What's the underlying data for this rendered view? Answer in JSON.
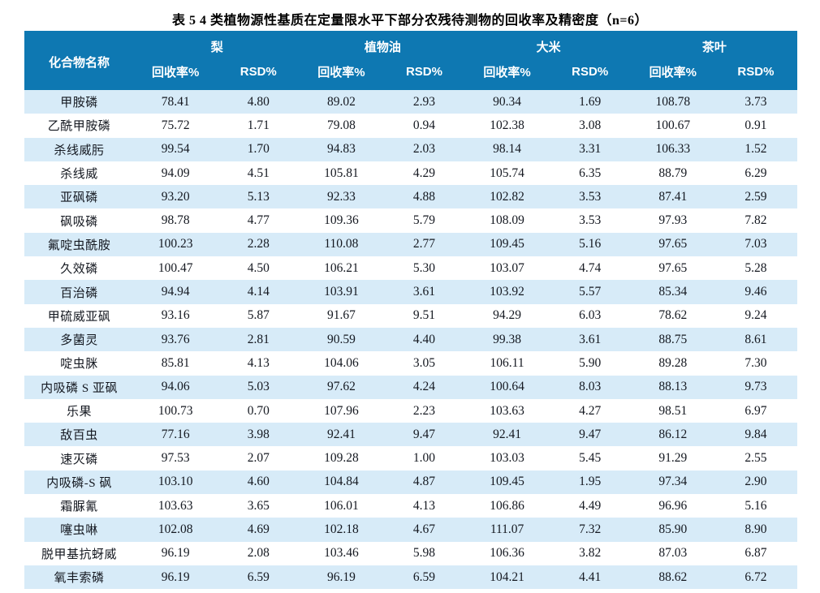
{
  "title": "表 5  4 类植物源性基质在定量限水平下部分农残待测物的回收率及精密度（n=6）",
  "table": {
    "compound_header": "化合物名称",
    "recovery_label": "回收率%",
    "rsd_label": "RSD%",
    "matrices": [
      "梨",
      "植物油",
      "大米",
      "茶叶"
    ],
    "rows": [
      {
        "name": "甲胺磷",
        "values": [
          "78.41",
          "4.80",
          "89.02",
          "2.93",
          "90.34",
          "1.69",
          "108.78",
          "3.73"
        ]
      },
      {
        "name": "乙酰甲胺磷",
        "values": [
          "75.72",
          "1.71",
          "79.08",
          "0.94",
          "102.38",
          "3.08",
          "100.67",
          "0.91"
        ]
      },
      {
        "name": "杀线威肟",
        "values": [
          "99.54",
          "1.70",
          "94.83",
          "2.03",
          "98.14",
          "3.31",
          "106.33",
          "1.52"
        ]
      },
      {
        "name": "杀线威",
        "values": [
          "94.09",
          "4.51",
          "105.81",
          "4.29",
          "105.74",
          "6.35",
          "88.79",
          "6.29"
        ]
      },
      {
        "name": "亚砜磷",
        "values": [
          "93.20",
          "5.13",
          "92.33",
          "4.88",
          "102.82",
          "3.53",
          "87.41",
          "2.59"
        ]
      },
      {
        "name": "砜吸磷",
        "values": [
          "98.78",
          "4.77",
          "109.36",
          "5.79",
          "108.09",
          "3.53",
          "97.93",
          "7.82"
        ]
      },
      {
        "name": "氟啶虫酰胺",
        "values": [
          "100.23",
          "2.28",
          "110.08",
          "2.77",
          "109.45",
          "5.16",
          "97.65",
          "7.03"
        ]
      },
      {
        "name": "久效磷",
        "values": [
          "100.47",
          "4.50",
          "106.21",
          "5.30",
          "103.07",
          "4.74",
          "97.65",
          "5.28"
        ]
      },
      {
        "name": "百治磷",
        "values": [
          "94.94",
          "4.14",
          "103.91",
          "3.61",
          "103.92",
          "5.57",
          "85.34",
          "9.46"
        ]
      },
      {
        "name": "甲硫威亚砜",
        "values": [
          "93.16",
          "5.87",
          "91.67",
          "9.51",
          "94.29",
          "6.03",
          "78.62",
          "9.24"
        ]
      },
      {
        "name": "多菌灵",
        "values": [
          "93.76",
          "2.81",
          "90.59",
          "4.40",
          "99.38",
          "3.61",
          "88.75",
          "8.61"
        ]
      },
      {
        "name": "啶虫脒",
        "values": [
          "85.81",
          "4.13",
          "104.06",
          "3.05",
          "106.11",
          "5.90",
          "89.28",
          "7.30"
        ]
      },
      {
        "name": "内吸磷 S 亚砜",
        "values": [
          "94.06",
          "5.03",
          "97.62",
          "4.24",
          "100.64",
          "8.03",
          "88.13",
          "9.73"
        ]
      },
      {
        "name": "乐果",
        "values": [
          "100.73",
          "0.70",
          "107.96",
          "2.23",
          "103.63",
          "4.27",
          "98.51",
          "6.97"
        ]
      },
      {
        "name": "敌百虫",
        "values": [
          "77.16",
          "3.98",
          "92.41",
          "9.47",
          "92.41",
          "9.47",
          "86.12",
          "9.84"
        ]
      },
      {
        "name": "速灭磷",
        "values": [
          "97.53",
          "2.07",
          "109.28",
          "1.00",
          "103.03",
          "5.45",
          "91.29",
          "2.55"
        ]
      },
      {
        "name": "内吸磷-S 砜",
        "values": [
          "103.10",
          "4.60",
          "104.84",
          "4.87",
          "109.45",
          "1.95",
          "97.34",
          "2.90"
        ]
      },
      {
        "name": "霜脲氰",
        "values": [
          "103.63",
          "3.65",
          "106.01",
          "4.13",
          "106.86",
          "4.49",
          "96.96",
          "5.16"
        ]
      },
      {
        "name": "噻虫啉",
        "values": [
          "102.08",
          "4.69",
          "102.18",
          "4.67",
          "111.07",
          "7.32",
          "85.90",
          "8.90"
        ]
      },
      {
        "name": "脱甲基抗蚜威",
        "values": [
          "96.19",
          "2.08",
          "103.46",
          "5.98",
          "106.36",
          "3.82",
          "87.03",
          "6.87"
        ]
      },
      {
        "name": "氧丰索磷",
        "values": [
          "96.19",
          "6.59",
          "96.19",
          "6.59",
          "104.21",
          "4.41",
          "88.62",
          "6.72"
        ]
      }
    ]
  },
  "colors": {
    "header_bg": "#0E78B2",
    "header_text": "#FFFFFF",
    "stripe_bg": "#D7EBF8",
    "body_text": "#141820"
  }
}
